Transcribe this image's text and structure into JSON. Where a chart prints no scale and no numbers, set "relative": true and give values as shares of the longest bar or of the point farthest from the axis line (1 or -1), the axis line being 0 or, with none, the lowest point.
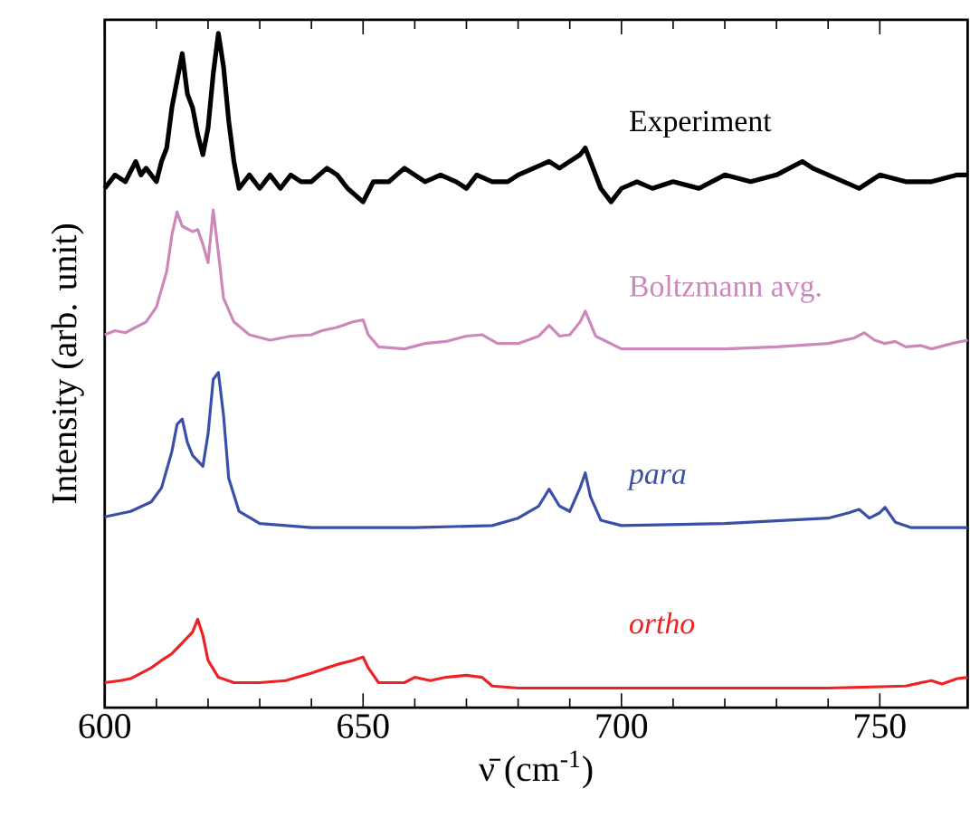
{
  "chart_data": {
    "type": "line",
    "xlabel": "ν̄ (cm$^{-1}$)",
    "ylabel": "Intensity (arb. unit)",
    "relative": true,
    "xlim": [
      600,
      767
    ],
    "xticks": [
      600,
      650,
      700,
      750
    ],
    "marker": "none",
    "line_style": "solid",
    "series": [
      {
        "name": "Experiment",
        "color": "#000000",
        "x": [
          600,
          602,
          604,
          606,
          607,
          608,
          610,
          611,
          612,
          613,
          614,
          615,
          616,
          617,
          618,
          619,
          620,
          621,
          622,
          623,
          624,
          625,
          626,
          628,
          630,
          632,
          634,
          636,
          638,
          640,
          643,
          645,
          647,
          650,
          652,
          655,
          658,
          660,
          662,
          665,
          668,
          670,
          672,
          675,
          678,
          680,
          683,
          686,
          688,
          690,
          692,
          693,
          694,
          696,
          698,
          700,
          703,
          706,
          710,
          715,
          720,
          725,
          730,
          735,
          737,
          740,
          743,
          746,
          750,
          755,
          760,
          765,
          767
        ],
        "values": [
          0.77,
          0.79,
          0.78,
          0.81,
          0.79,
          0.8,
          0.78,
          0.81,
          0.83,
          0.89,
          0.93,
          0.97,
          0.91,
          0.89,
          0.85,
          0.82,
          0.86,
          0.94,
          1.0,
          0.95,
          0.87,
          0.81,
          0.77,
          0.79,
          0.77,
          0.79,
          0.77,
          0.79,
          0.78,
          0.78,
          0.8,
          0.79,
          0.77,
          0.75,
          0.78,
          0.78,
          0.8,
          0.79,
          0.78,
          0.79,
          0.78,
          0.77,
          0.79,
          0.78,
          0.78,
          0.79,
          0.8,
          0.81,
          0.8,
          0.81,
          0.82,
          0.83,
          0.81,
          0.77,
          0.75,
          0.77,
          0.78,
          0.77,
          0.78,
          0.77,
          0.79,
          0.78,
          0.79,
          0.81,
          0.8,
          0.79,
          0.78,
          0.77,
          0.79,
          0.78,
          0.78,
          0.79,
          0.79
        ]
      },
      {
        "name": "Boltzmann avg.",
        "color": "#cc88bb",
        "x": [
          600,
          602,
          604,
          606,
          608,
          610,
          612,
          613,
          614,
          615,
          617,
          618,
          619,
          620,
          621,
          622,
          623,
          625,
          628,
          632,
          636,
          640,
          642,
          645,
          648,
          650,
          651,
          653,
          658,
          662,
          666,
          670,
          673,
          676,
          680,
          684,
          686,
          688,
          690,
          692,
          693,
          695,
          700,
          710,
          720,
          730,
          740,
          745,
          747,
          749,
          751,
          753,
          755,
          758,
          760,
          764,
          767
        ],
        "values": [
          0.553,
          0.559,
          0.556,
          0.564,
          0.572,
          0.594,
          0.647,
          0.701,
          0.735,
          0.714,
          0.706,
          0.709,
          0.687,
          0.66,
          0.738,
          0.674,
          0.607,
          0.572,
          0.553,
          0.545,
          0.551,
          0.553,
          0.559,
          0.564,
          0.572,
          0.575,
          0.553,
          0.535,
          0.532,
          0.54,
          0.543,
          0.551,
          0.553,
          0.54,
          0.54,
          0.551,
          0.567,
          0.551,
          0.553,
          0.572,
          0.588,
          0.551,
          0.532,
          0.532,
          0.532,
          0.535,
          0.54,
          0.548,
          0.556,
          0.545,
          0.54,
          0.543,
          0.535,
          0.537,
          0.532,
          0.54,
          0.545
        ]
      },
      {
        "name": "*para*",
        "color": "#3a4fa8",
        "x": [
          600,
          605,
          609,
          611,
          613,
          614,
          615,
          616,
          617,
          618,
          619,
          620,
          621,
          622,
          623,
          624,
          626,
          630,
          640,
          660,
          675,
          680,
          684,
          686,
          688,
          690,
          692,
          693,
          694,
          696,
          700,
          720,
          740,
          744,
          746,
          748,
          750,
          751,
          753,
          756,
          767
        ],
        "values": [
          0.283,
          0.291,
          0.305,
          0.326,
          0.38,
          0.42,
          0.428,
          0.393,
          0.374,
          0.366,
          0.358,
          0.406,
          0.487,
          0.497,
          0.433,
          0.34,
          0.291,
          0.273,
          0.267,
          0.267,
          0.27,
          0.281,
          0.299,
          0.324,
          0.299,
          0.291,
          0.326,
          0.348,
          0.313,
          0.278,
          0.27,
          0.273,
          0.281,
          0.289,
          0.294,
          0.281,
          0.289,
          0.297,
          0.275,
          0.267,
          0.267
        ]
      },
      {
        "name": "*ortho*",
        "color": "#ee2222",
        "x": [
          600,
          603,
          605,
          607,
          609,
          611,
          613,
          615,
          617,
          618,
          619,
          620,
          622,
          625,
          630,
          635,
          640,
          643,
          645,
          648,
          650,
          651,
          653,
          658,
          660,
          663,
          666,
          670,
          673,
          675,
          680,
          700,
          720,
          740,
          755,
          758,
          760,
          762,
          765,
          767
        ],
        "values": [
          0.037,
          0.04,
          0.043,
          0.051,
          0.059,
          0.07,
          0.08,
          0.096,
          0.112,
          0.131,
          0.107,
          0.07,
          0.045,
          0.037,
          0.037,
          0.04,
          0.051,
          0.059,
          0.064,
          0.07,
          0.075,
          0.059,
          0.037,
          0.037,
          0.045,
          0.04,
          0.045,
          0.048,
          0.045,
          0.032,
          0.029,
          0.029,
          0.029,
          0.029,
          0.032,
          0.037,
          0.04,
          0.035,
          0.043,
          0.045
        ]
      }
    ]
  }
}
